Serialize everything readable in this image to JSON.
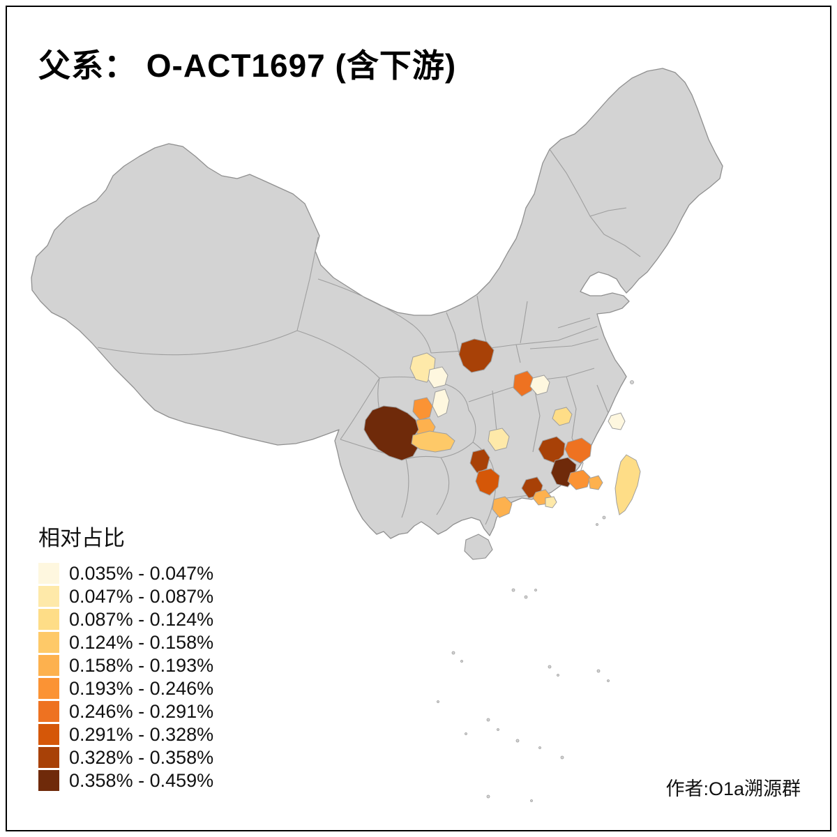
{
  "title": "父系： O-ACT1697 (含下游)",
  "attribution": "作者:O1a溯源群",
  "legend": {
    "title": "相对占比",
    "classes": [
      {
        "label": "0.035% - 0.047%",
        "color": "#FEF7DF"
      },
      {
        "label": "0.047% - 0.087%",
        "color": "#FEE9A9"
      },
      {
        "label": "0.087% - 0.124%",
        "color": "#FEDD87"
      },
      {
        "label": "0.124% - 0.158%",
        "color": "#FEC968"
      },
      {
        "label": "0.158% - 0.193%",
        "color": "#FDB14E"
      },
      {
        "label": "0.193% - 0.246%",
        "color": "#FB9334"
      },
      {
        "label": "0.246% - 0.291%",
        "color": "#EE7221"
      },
      {
        "label": "0.291% - 0.328%",
        "color": "#D55708"
      },
      {
        "label": "0.328% - 0.358%",
        "color": "#A84107"
      },
      {
        "label": "0.358% - 0.459%",
        "color": "#6F2A0A"
      }
    ]
  },
  "map": {
    "base_fill": "#D3D3D3",
    "border_color": "#9E9E9E",
    "outline_color": "#8F8F8F",
    "background": "#FFFFFF",
    "frame_color": "#000000",
    "regions": [
      {
        "class": 9
      },
      {
        "class": 2
      },
      {
        "class": 1
      },
      {
        "class": 1
      },
      {
        "class": 6
      },
      {
        "class": 5
      },
      {
        "class": 10
      },
      {
        "class": 4
      },
      {
        "class": 9
      },
      {
        "class": 8
      },
      {
        "class": 5
      },
      {
        "class": 2
      },
      {
        "class": 7
      },
      {
        "class": 1
      },
      {
        "class": 3
      },
      {
        "class": 9
      },
      {
        "class": 10
      },
      {
        "class": 7
      },
      {
        "class": 6
      },
      {
        "class": 5
      },
      {
        "class": 9
      },
      {
        "class": 5
      },
      {
        "class": 2
      },
      {
        "class": 1
      },
      {
        "class": 3
      }
    ]
  }
}
